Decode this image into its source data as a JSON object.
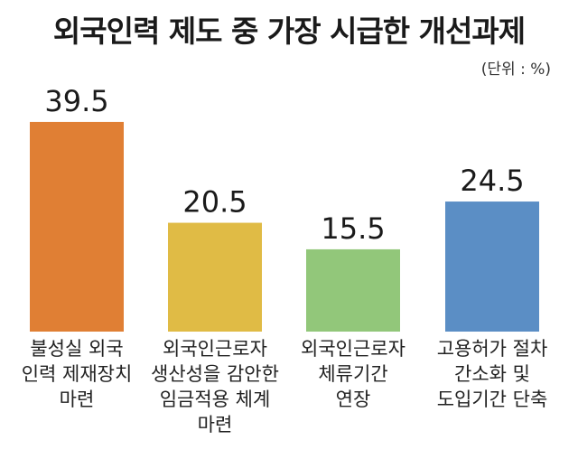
{
  "chart_data": {
    "type": "bar",
    "title": "외국인력 제도 중 가장 시급한 개선과제",
    "unit": "(단위 : %)",
    "categories": [
      "불성실 외국\n인력 제재장치\n마련",
      "외국인근로자\n생산성을 감안한\n임금적용 체계\n마련",
      "외국인근로자\n체류기간\n연장",
      "고용허가 절차\n간소화 및\n도입기간 단축"
    ],
    "values": [
      39.5,
      20.5,
      15.5,
      24.5
    ],
    "value_labels": [
      "39.5",
      "20.5",
      "15.5",
      "24.5"
    ],
    "colors": [
      "#e07f34",
      "#e0bb45",
      "#92c77a",
      "#5b8ec5"
    ],
    "ylim": [
      0,
      40
    ],
    "grid": false,
    "legend": "none"
  }
}
